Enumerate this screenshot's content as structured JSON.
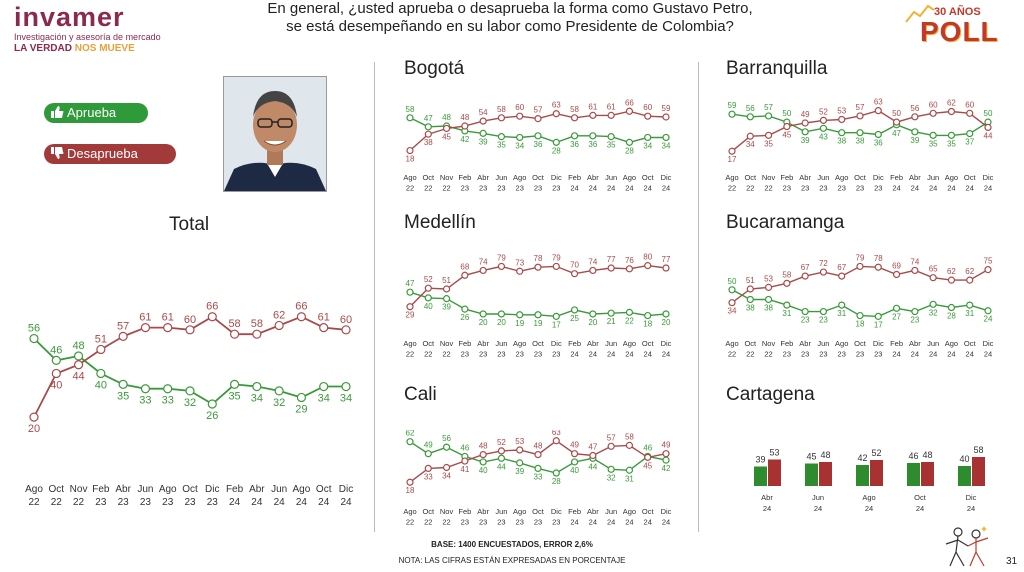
{
  "brand": {
    "name": "invamer",
    "subtitle": "Investigación y asesoría de mercado",
    "tagline_a": "LA VERDAD",
    "tagline_b": "NOS MUEVE",
    "poll_years": "30 AÑOS",
    "poll_word": "POLL"
  },
  "question": {
    "line1": "En general, ¿usted aprueba o desaprueba la forma como Gustavo Petro,",
    "line2": "se está desempeñando en su labor como Presidente de Colombia?"
  },
  "legend": {
    "approve": "Aprueba",
    "disapprove": "Desaprueba"
  },
  "colors": {
    "approve": "#3a9a3a",
    "disapprove": "#a94a4a",
    "approve_bar": "#2e8b2e",
    "disapprove_bar": "#a83232"
  },
  "footer": {
    "base": "BASE: 1400 ENCUESTADOS, ERROR 2,6%",
    "note": "NOTA: LAS CIFRAS ESTÁN EXPRESADAS EN PORCENTAJE",
    "page": "31"
  },
  "chart_data": [
    {
      "type": "line",
      "title": "Total",
      "categories": [
        [
          "Ago",
          "22"
        ],
        [
          "Oct",
          "22"
        ],
        [
          "Nov",
          "22"
        ],
        [
          "Feb",
          "23"
        ],
        [
          "Abr",
          "23"
        ],
        [
          "Jun",
          "23"
        ],
        [
          "Ago",
          "23"
        ],
        [
          "Oct",
          "23"
        ],
        [
          "Dic",
          "23"
        ],
        [
          "Feb",
          "24"
        ],
        [
          "Abr",
          "24"
        ],
        [
          "Jun",
          "24"
        ],
        [
          "Ago",
          "24"
        ],
        [
          "Oct",
          "24"
        ],
        [
          "Dic",
          "24"
        ]
      ],
      "series": [
        {
          "name": "Aprueba",
          "values": [
            56,
            46,
            48,
            40,
            35,
            33,
            33,
            32,
            26,
            35,
            34,
            32,
            29,
            34,
            34
          ]
        },
        {
          "name": "Desaprueba",
          "values": [
            20,
            40,
            44,
            51,
            57,
            61,
            61,
            60,
            66,
            58,
            58,
            62,
            66,
            61,
            60
          ]
        }
      ],
      "ylim": [
        15,
        70
      ]
    },
    {
      "type": "line",
      "title": "Bogotá",
      "categories": [
        [
          "Ago",
          "22"
        ],
        [
          "Oct",
          "22"
        ],
        [
          "Nov",
          "22"
        ],
        [
          "Feb",
          "23"
        ],
        [
          "Abr",
          "23"
        ],
        [
          "Jun",
          "23"
        ],
        [
          "Ago",
          "23"
        ],
        [
          "Oct",
          "23"
        ],
        [
          "Dic",
          "23"
        ],
        [
          "Feb",
          "24"
        ],
        [
          "Abr",
          "24"
        ],
        [
          "Jun",
          "24"
        ],
        [
          "Ago",
          "24"
        ],
        [
          "Oct",
          "24"
        ],
        [
          "Dic",
          "24"
        ]
      ],
      "series": [
        {
          "name": "Aprueba",
          "values": [
            58,
            47,
            48,
            42,
            39,
            35,
            34,
            36,
            28,
            36,
            36,
            35,
            28,
            34,
            34
          ]
        },
        {
          "name": "Desaprueba",
          "values": [
            18,
            38,
            45,
            48,
            54,
            58,
            60,
            57,
            63,
            58,
            61,
            61,
            66,
            60,
            59
          ]
        }
      ],
      "ylim": [
        15,
        70
      ]
    },
    {
      "type": "line",
      "title": "Medellín",
      "categories": [
        [
          "Ago",
          "22"
        ],
        [
          "Oct",
          "22"
        ],
        [
          "Nov",
          "22"
        ],
        [
          "Feb",
          "23"
        ],
        [
          "Abr",
          "23"
        ],
        [
          "Jun",
          "23"
        ],
        [
          "Ago",
          "23"
        ],
        [
          "Oct",
          "23"
        ],
        [
          "Dic",
          "23"
        ],
        [
          "Feb",
          "24"
        ],
        [
          "Abr",
          "24"
        ],
        [
          "Jun",
          "24"
        ],
        [
          "Ago",
          "24"
        ],
        [
          "Oct",
          "24"
        ],
        [
          "Dic",
          "24"
        ]
      ],
      "series": [
        {
          "name": "Aprueba",
          "values": [
            47,
            40,
            39,
            26,
            20,
            20,
            19,
            19,
            17,
            25,
            20,
            21,
            22,
            18,
            20
          ]
        },
        {
          "name": "Desaprueba",
          "values": [
            29,
            52,
            51,
            68,
            74,
            79,
            73,
            78,
            79,
            70,
            74,
            77,
            76,
            80,
            77
          ]
        }
      ],
      "ylim": [
        15,
        82
      ]
    },
    {
      "type": "line",
      "title": "Cali",
      "categories": [
        [
          "Ago",
          "22"
        ],
        [
          "Oct",
          "22"
        ],
        [
          "Nov",
          "22"
        ],
        [
          "Feb",
          "23"
        ],
        [
          "Abr",
          "23"
        ],
        [
          "Jun",
          "23"
        ],
        [
          "Ago",
          "23"
        ],
        [
          "Oct",
          "23"
        ],
        [
          "Dic",
          "23"
        ],
        [
          "Feb",
          "24"
        ],
        [
          "Abr",
          "24"
        ],
        [
          "Jun",
          "24"
        ],
        [
          "Ago",
          "24"
        ],
        [
          "Oct",
          "24"
        ],
        [
          "Dic",
          "24"
        ]
      ],
      "series": [
        {
          "name": "Aprueba",
          "values": [
            62,
            49,
            56,
            46,
            40,
            44,
            39,
            33,
            28,
            40,
            44,
            32,
            31,
            46,
            42
          ]
        },
        {
          "name": "Desaprueba",
          "values": [
            18,
            33,
            34,
            41,
            48,
            52,
            53,
            48,
            63,
            49,
            47,
            57,
            58,
            45,
            49
          ]
        }
      ],
      "ylim": [
        15,
        66
      ]
    },
    {
      "type": "line",
      "title": "Barranquilla",
      "categories": [
        [
          "Ago",
          "22"
        ],
        [
          "Oct",
          "22"
        ],
        [
          "Nov",
          "22"
        ],
        [
          "Feb",
          "23"
        ],
        [
          "Abr",
          "23"
        ],
        [
          "Jun",
          "23"
        ],
        [
          "Ago",
          "23"
        ],
        [
          "Oct",
          "23"
        ],
        [
          "Dic",
          "23"
        ],
        [
          "Feb",
          "24"
        ],
        [
          "Abr",
          "24"
        ],
        [
          "Jun",
          "24"
        ],
        [
          "Ago",
          "24"
        ],
        [
          "Oct",
          "24"
        ],
        [
          "Dic",
          "24"
        ]
      ],
      "series": [
        {
          "name": "Aprueba",
          "values": [
            59,
            56,
            57,
            50,
            39,
            43,
            38,
            38,
            36,
            47,
            39,
            35,
            35,
            37,
            50
          ]
        },
        {
          "name": "Desaprueba",
          "values": [
            17,
            34,
            35,
            45,
            49,
            52,
            53,
            57,
            63,
            50,
            56,
            60,
            62,
            60,
            44
          ]
        }
      ],
      "ylim": [
        15,
        66
      ]
    },
    {
      "type": "line",
      "title": "Bucaramanga",
      "categories": [
        [
          "Ago",
          "22"
        ],
        [
          "Oct",
          "22"
        ],
        [
          "Nov",
          "22"
        ],
        [
          "Feb",
          "23"
        ],
        [
          "Abr",
          "23"
        ],
        [
          "Jun",
          "23"
        ],
        [
          "Ago",
          "23"
        ],
        [
          "Oct",
          "23"
        ],
        [
          "Dic",
          "23"
        ],
        [
          "Feb",
          "24"
        ],
        [
          "Abr",
          "24"
        ],
        [
          "Jun",
          "24"
        ],
        [
          "Ago",
          "24"
        ],
        [
          "Oct",
          "24"
        ],
        [
          "Dic",
          "24"
        ]
      ],
      "series": [
        {
          "name": "Aprueba",
          "values": [
            50,
            38,
            38,
            31,
            23,
            23,
            31,
            18,
            17,
            27,
            23,
            32,
            28,
            31,
            24
          ]
        },
        {
          "name": "Desaprueba",
          "values": [
            34,
            51,
            53,
            58,
            67,
            72,
            67,
            79,
            78,
            69,
            74,
            65,
            62,
            62,
            75
          ]
        }
      ],
      "ylim": [
        15,
        82
      ]
    },
    {
      "type": "bar",
      "title": "Cartagena",
      "categories": [
        [
          "Abr",
          "24"
        ],
        [
          "Jun",
          "24"
        ],
        [
          "Ago",
          "24"
        ],
        [
          "Oct",
          "24"
        ],
        [
          "Dic",
          "24"
        ]
      ],
      "series": [
        {
          "name": "Aprueba",
          "values": [
            39,
            45,
            42,
            46,
            40
          ]
        },
        {
          "name": "Desaprueba",
          "values": [
            53,
            48,
            52,
            48,
            58
          ]
        }
      ],
      "ylim": [
        0,
        60
      ]
    }
  ]
}
